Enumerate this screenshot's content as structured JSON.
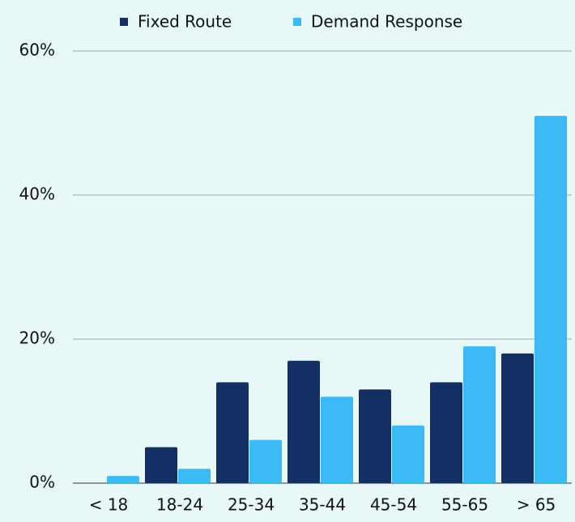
{
  "chart_data": {
    "type": "bar",
    "categories": [
      "< 18",
      "18-24",
      "25-34",
      "35-44",
      "45-54",
      "55-65",
      "> 65"
    ],
    "series": [
      {
        "name": "Fixed Route",
        "color": "#142f63",
        "values": [
          0,
          5,
          14,
          17,
          13,
          14,
          18
        ]
      },
      {
        "name": "Demand Response",
        "color": "#3bbaf5",
        "values": [
          1,
          2,
          6,
          12,
          8,
          19,
          51
        ]
      }
    ],
    "ylim": [
      0,
      60
    ],
    "yticks": [
      {
        "value": 0,
        "label": "0%"
      },
      {
        "value": 20,
        "label": "20%"
      },
      {
        "value": 40,
        "label": "40%"
      },
      {
        "value": 60,
        "label": "60%"
      }
    ],
    "grid": true,
    "legend": "top"
  }
}
